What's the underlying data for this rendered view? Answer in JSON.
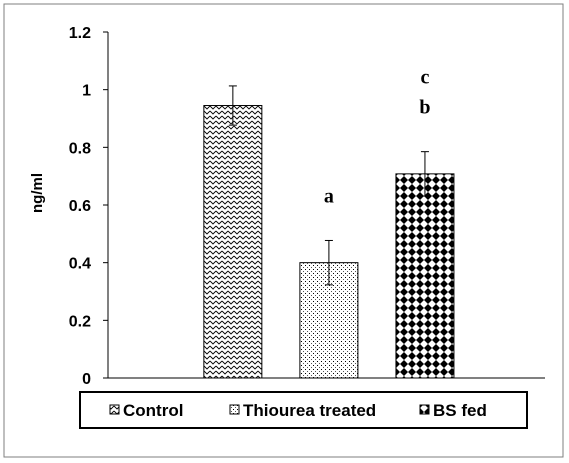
{
  "chart_data": {
    "type": "bar",
    "title": "",
    "xlabel": "",
    "ylabel": "ng/ml",
    "ylim": [
      0,
      1.2
    ],
    "yticks": [
      "0",
      "0.2",
      "0.4",
      "0.6",
      "0.8",
      "1",
      "1.2"
    ],
    "grid": false,
    "legend_position": "bottom",
    "series": [
      {
        "name": "Control",
        "value": 0.945,
        "error": 0.068,
        "pattern": "zigzag",
        "annotations": []
      },
      {
        "name": "Thiourea treated",
        "value": 0.4,
        "error": 0.077,
        "pattern": "dots",
        "annotations": [
          "a"
        ]
      },
      {
        "name": "BS fed",
        "value": 0.708,
        "error": 0.077,
        "pattern": "diamonds",
        "annotations": [
          "b",
          "c"
        ]
      }
    ],
    "colors": {
      "ink": "#000000",
      "background": "#ffffff",
      "frame": "#7f7f7f"
    }
  }
}
